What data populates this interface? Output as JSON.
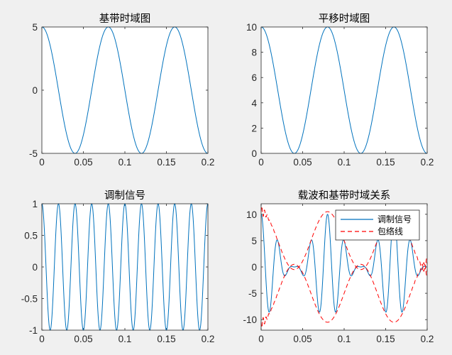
{
  "colors": {
    "signal": "#0072BD",
    "envelope": "#FF0000",
    "background": "#f0f0f0",
    "axes_bg": "#ffffff"
  },
  "chart_data": [
    {
      "type": "line",
      "title": "基带时域图",
      "xlim": [
        0,
        0.2
      ],
      "ylim": [
        -5,
        5
      ],
      "xticks": [
        "0",
        "0.05",
        "0.1",
        "0.15",
        "0.2"
      ],
      "yticks": [
        "-5",
        "0",
        "5"
      ],
      "series": [
        {
          "function": "5*cos(2*pi*12.5*t)",
          "amplitude": 5,
          "offset": 0,
          "frequency_hz": 12.5
        }
      ]
    },
    {
      "type": "line",
      "title": "平移时域图",
      "xlim": [
        0,
        0.2
      ],
      "ylim": [
        0,
        10
      ],
      "xticks": [
        "0",
        "0.05",
        "0.1",
        "0.15",
        "0.2"
      ],
      "yticks": [
        "0",
        "2",
        "4",
        "6",
        "8",
        "10"
      ],
      "series": [
        {
          "function": "5+5*cos(2*pi*12.5*t)",
          "amplitude": 5,
          "offset": 5,
          "frequency_hz": 12.5
        }
      ]
    },
    {
      "type": "line",
      "title": "调制信号",
      "xlim": [
        0,
        0.2
      ],
      "ylim": [
        -1,
        1
      ],
      "xticks": [
        "0",
        "0.05",
        "0.1",
        "0.15",
        "0.2"
      ],
      "yticks": [
        "-1",
        "-0.5",
        "0",
        "0.5",
        "1"
      ],
      "series": [
        {
          "function": "cos(2*pi*50*t)",
          "amplitude": 1,
          "offset": 0,
          "frequency_hz": 50
        }
      ]
    },
    {
      "type": "line",
      "title": "载波和基带时域关系",
      "xlim": [
        0,
        0.2
      ],
      "ylim": [
        -12,
        12
      ],
      "xticks": [
        "0",
        "0.05",
        "0.1",
        "0.15",
        "0.2"
      ],
      "yticks": [
        "-10",
        "-5",
        "0",
        "5",
        "10"
      ],
      "legend": {
        "placement": "top-right",
        "entries": [
          "调制信号",
          "包络线"
        ]
      },
      "series": [
        {
          "name": "调制信号",
          "function": "(5+5*cos(2*pi*12.5*t))*cos(2*pi*50*t)",
          "style": "solid"
        },
        {
          "name": "包络线",
          "function": "±|hilbert envelope|",
          "style": "dashed"
        }
      ]
    }
  ]
}
